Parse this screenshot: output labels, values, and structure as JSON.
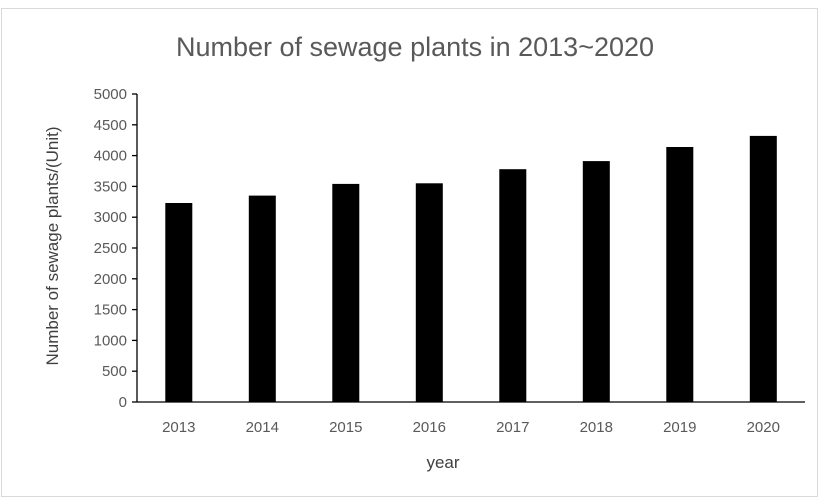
{
  "chart_data": {
    "type": "bar",
    "title": "Number of sewage plants in 2013~2020",
    "xlabel": "year",
    "ylabel": "Number of sewage plants/(Unit)",
    "categories": [
      "2013",
      "2014",
      "2015",
      "2016",
      "2017",
      "2018",
      "2019",
      "2020"
    ],
    "values": [
      3230,
      3350,
      3540,
      3550,
      3780,
      3910,
      4140,
      4320
    ],
    "ylim": [
      0,
      5000
    ],
    "yticks": [
      0,
      500,
      1000,
      1500,
      2000,
      2500,
      3000,
      3500,
      4000,
      4500,
      5000
    ],
    "grid": false,
    "bar_color": "#000000"
  }
}
